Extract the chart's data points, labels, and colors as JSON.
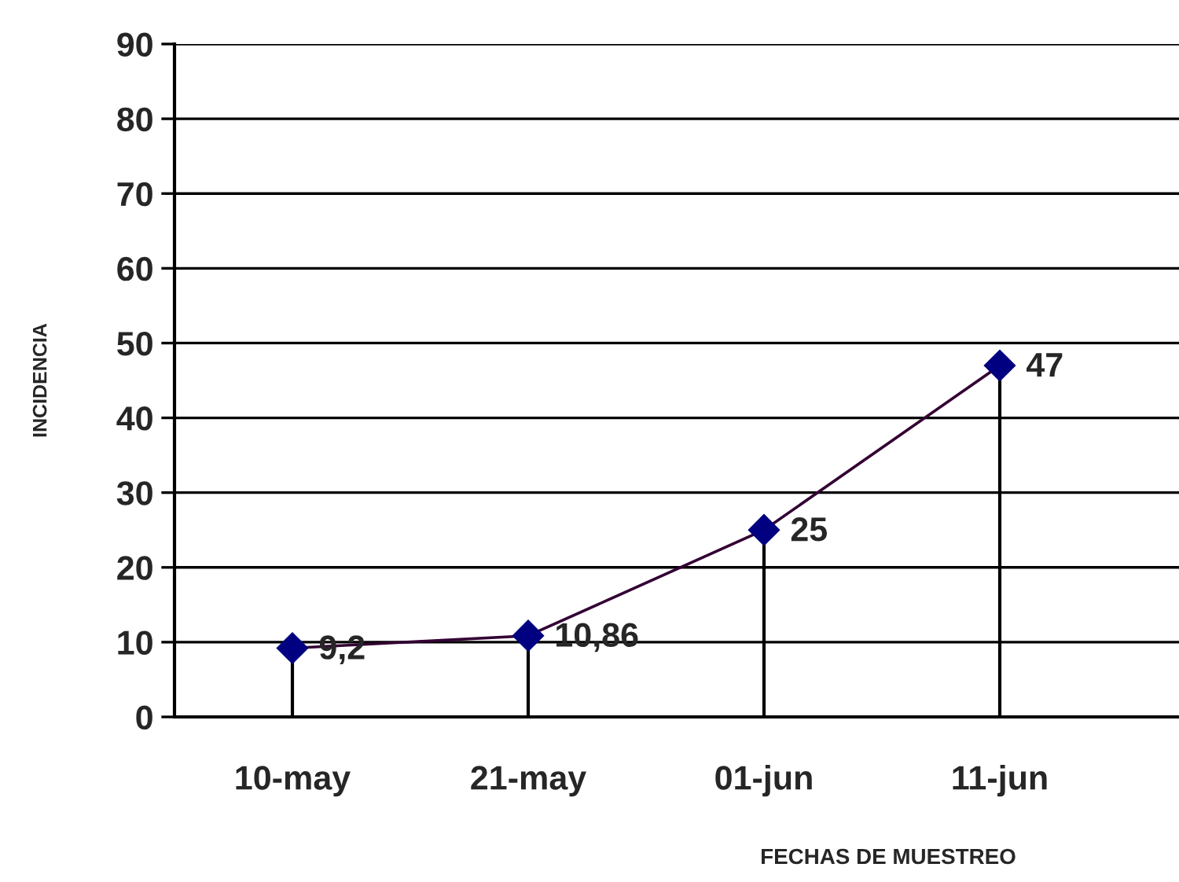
{
  "chart_data": {
    "type": "lollipop",
    "xlabel": "FECHAS DE MUESTREO",
    "ylabel": "INCIDENCIA",
    "categories": [
      "10-may",
      "21-may",
      "01-jun",
      "11-jun",
      null
    ],
    "series": [
      {
        "type": "line",
        "color": "#330033",
        "marker": "none",
        "values": [
          9.2,
          10.86,
          25,
          47,
          null
        ]
      },
      {
        "color": "#000080",
        "marker": "diamond",
        "values": [
          9.2,
          10.86,
          25,
          47,
          null
        ],
        "value_labels": [
          "9,2",
          "10,86",
          "25",
          "47",
          null
        ]
      }
    ],
    "ylim": [
      0,
      90
    ],
    "yticks": [
      0,
      10,
      20,
      30,
      40,
      50,
      60,
      70,
      80,
      90
    ],
    "grid": "y"
  }
}
